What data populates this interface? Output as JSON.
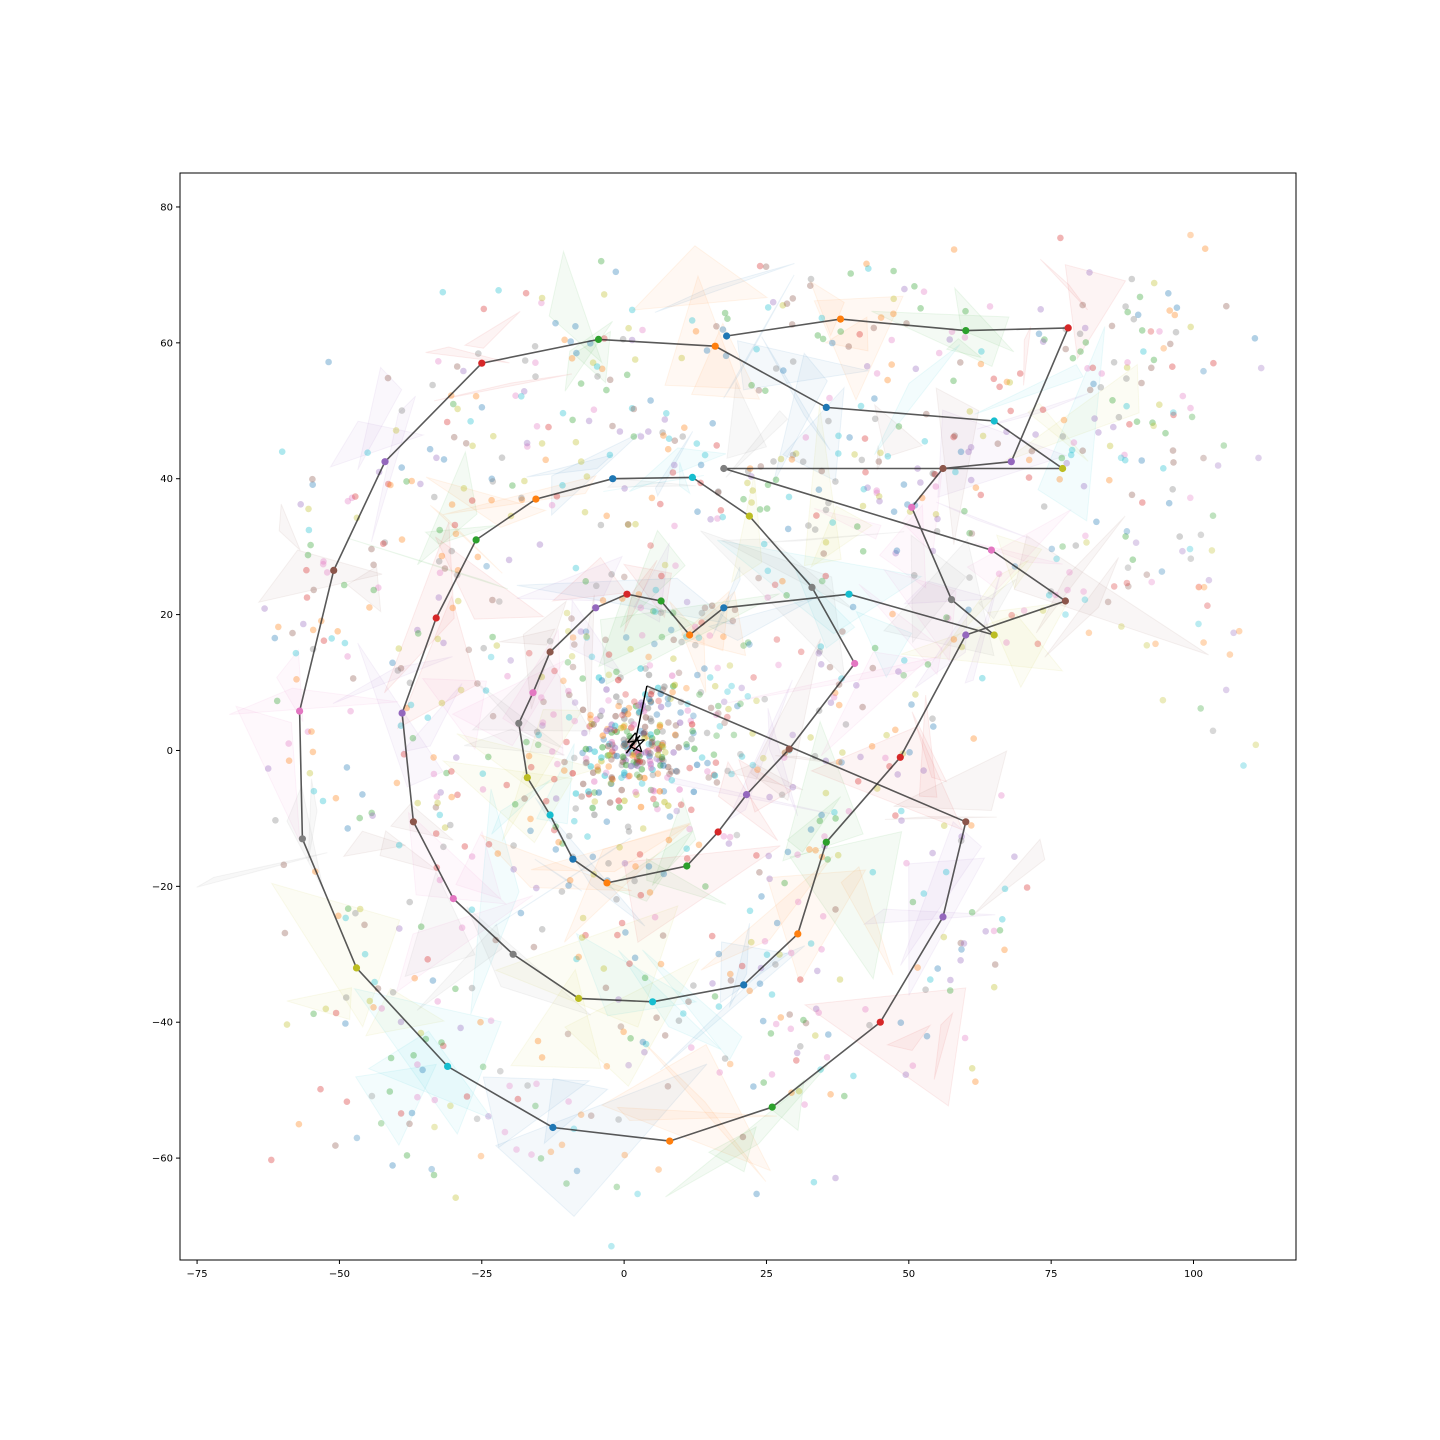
{
  "chart_data": {
    "type": "scatter",
    "title": "",
    "xlabel": "",
    "ylabel": "",
    "xlim": [
      -78,
      118
    ],
    "ylim": [
      -75,
      85
    ],
    "grid": false,
    "x_ticks": [
      -75,
      -50,
      -25,
      0,
      25,
      50,
      75,
      100
    ],
    "x_tick_labels": [
      "−75",
      "−50",
      "−25",
      "0",
      "25",
      "50",
      "75",
      "100"
    ],
    "y_ticks": [
      -60,
      -40,
      -20,
      0,
      20,
      40,
      60,
      80
    ],
    "y_tick_labels": [
      "−60",
      "−40",
      "−20",
      "0",
      "20",
      "40",
      "60",
      "80"
    ],
    "palette": [
      "#1f77b4",
      "#ff7f0e",
      "#2ca02c",
      "#d62728",
      "#9467bd",
      "#8c564b",
      "#e377c2",
      "#7f7f7f",
      "#bcbd22",
      "#17becf"
    ],
    "path_color": "#222222",
    "path": [
      [
        18,
        61
      ],
      [
        38,
        63.5
      ],
      [
        60,
        61.8
      ],
      [
        78,
        62.2
      ],
      [
        68,
        42.5
      ],
      [
        56,
        41.5
      ],
      [
        50.5,
        35.8
      ],
      [
        57.5,
        22.2
      ],
      [
        65,
        17
      ],
      [
        39.5,
        23
      ],
      [
        17.5,
        21
      ],
      [
        11.5,
        17
      ],
      [
        6.5,
        22
      ],
      [
        0.5,
        23
      ],
      [
        -5,
        21
      ],
      [
        -13,
        14.5
      ],
      [
        -16,
        8.5
      ],
      [
        -18.5,
        4
      ],
      [
        -17,
        -4
      ],
      [
        -13,
        -9.5
      ],
      [
        -9,
        -16
      ],
      [
        -3,
        -19.5
      ],
      [
        11,
        -17
      ],
      [
        16.5,
        -12
      ],
      [
        21.5,
        -6.5
      ],
      [
        29,
        0.2
      ],
      [
        40.5,
        12.8
      ],
      [
        33,
        24
      ],
      [
        22,
        34.5
      ],
      [
        12,
        40.2
      ],
      [
        -2,
        40
      ],
      [
        -15.5,
        37
      ],
      [
        -26,
        31
      ],
      [
        -33,
        19.5
      ],
      [
        -39,
        5.5
      ],
      [
        -37,
        -10.5
      ],
      [
        -30,
        -21.8
      ],
      [
        -19.5,
        -30
      ],
      [
        -8,
        -36.5
      ],
      [
        5,
        -37
      ],
      [
        21,
        -34.5
      ],
      [
        30.5,
        -27
      ],
      [
        35.5,
        -13.5
      ],
      [
        48.5,
        -1
      ],
      [
        60,
        17
      ],
      [
        77.5,
        22
      ],
      [
        64.5,
        29.5
      ],
      [
        17.5,
        41.5
      ],
      [
        77,
        41.5
      ],
      [
        65,
        48.5
      ],
      [
        35.5,
        50.5
      ],
      [
        16,
        59.5
      ],
      [
        -4.5,
        60.5
      ],
      [
        -25,
        57
      ],
      [
        -42,
        42.5
      ],
      [
        -51,
        26.5
      ],
      [
        -57,
        5.8
      ],
      [
        -56.5,
        -13
      ],
      [
        -47,
        -32
      ],
      [
        -31,
        -46.5
      ],
      [
        -12.5,
        -55.5
      ],
      [
        8,
        -57.5
      ],
      [
        26,
        -52.5
      ],
      [
        45,
        -40
      ],
      [
        56,
        -24.5
      ],
      [
        60,
        -10.5
      ]
    ],
    "star_center": [
      4,
      9.5
    ],
    "star_segments": [
      [
        2.3,
        1.8,
        0.4,
        -0.4
      ],
      [
        0.4,
        -0.4,
        2.8,
        2.2
      ],
      [
        2.8,
        2.2,
        1.0,
        0.6
      ],
      [
        1.0,
        0.6,
        3.1,
        -0.2
      ],
      [
        3.1,
        -0.2,
        2.0,
        2.6
      ],
      [
        2.0,
        2.6,
        0.6,
        1.2
      ],
      [
        0.6,
        1.2,
        3.6,
        1.6
      ],
      [
        3.6,
        1.6,
        1.6,
        -0.1
      ]
    ],
    "point_groups": [
      {
        "cx": 2,
        "cy": 1,
        "sx": 9,
        "sy": 7,
        "n": 130,
        "alpha": 0.35
      },
      {
        "cx": 2,
        "cy": 1,
        "sx": 4.5,
        "sy": 4.5,
        "n": 170,
        "alpha": 0.45
      },
      {
        "cx": -5,
        "cy": 55,
        "sx": 15,
        "sy": 9,
        "n": 70,
        "alpha": 0.35
      },
      {
        "cx": 45,
        "cy": 62,
        "sx": 18,
        "sy": 7,
        "n": 60,
        "alpha": 0.35
      },
      {
        "cx": 85,
        "cy": 50,
        "sx": 12,
        "sy": 12,
        "n": 70,
        "alpha": 0.35
      },
      {
        "cx": 50,
        "cy": 40,
        "sx": 18,
        "sy": 6,
        "n": 80,
        "alpha": 0.35
      },
      {
        "cx": 15,
        "cy": 38,
        "sx": 15,
        "sy": 8,
        "n": 55,
        "alpha": 0.35
      },
      {
        "cx": 80,
        "cy": 24,
        "sx": 15,
        "sy": 5,
        "n": 45,
        "alpha": 0.3
      },
      {
        "cx": -35,
        "cy": 35,
        "sx": 9,
        "sy": 13,
        "n": 50,
        "alpha": 0.35
      },
      {
        "cx": -52,
        "cy": 5,
        "sx": 7,
        "sy": 20,
        "n": 60,
        "alpha": 0.35
      },
      {
        "cx": -33,
        "cy": -5,
        "sx": 6,
        "sy": 15,
        "n": 45,
        "alpha": 0.35
      },
      {
        "cx": -40,
        "cy": -45,
        "sx": 10,
        "sy": 9,
        "n": 45,
        "alpha": 0.35
      },
      {
        "cx": -10,
        "cy": -55,
        "sx": 15,
        "sy": 6,
        "n": 40,
        "alpha": 0.3
      },
      {
        "cx": 10,
        "cy": -35,
        "sx": 18,
        "sy": 6,
        "n": 55,
        "alpha": 0.35
      },
      {
        "cx": 30,
        "cy": -45,
        "sx": 8,
        "sy": 10,
        "n": 35,
        "alpha": 0.35
      },
      {
        "cx": 32,
        "cy": -12,
        "sx": 6,
        "sy": 10,
        "n": 40,
        "alpha": 0.35
      },
      {
        "cx": 42,
        "cy": 8,
        "sx": 8,
        "sy": 8,
        "n": 40,
        "alpha": 0.35
      },
      {
        "cx": 58,
        "cy": -20,
        "sx": 6,
        "sy": 14,
        "n": 45,
        "alpha": 0.35
      },
      {
        "cx": 8,
        "cy": 18,
        "sx": 11,
        "sy": 6,
        "n": 55,
        "alpha": 0.3
      },
      {
        "cx": -8,
        "cy": -12,
        "sx": 10,
        "sy": 8,
        "n": 55,
        "alpha": 0.35
      },
      {
        "cx": -10,
        "cy": 12,
        "sx": 8,
        "sy": 8,
        "n": 40,
        "alpha": 0.3
      },
      {
        "cx": 20,
        "cy": 5,
        "sx": 7,
        "sy": 8,
        "n": 35,
        "alpha": 0.3
      },
      {
        "cx": 100,
        "cy": 35,
        "sx": 8,
        "sy": 20,
        "n": 30,
        "alpha": 0.3
      },
      {
        "cx": 92,
        "cy": 62,
        "sx": 8,
        "sy": 4,
        "n": 20,
        "alpha": 0.35
      },
      {
        "cx": -20,
        "cy": 45,
        "sx": 10,
        "sy": 8,
        "n": 40,
        "alpha": 0.35
      }
    ]
  }
}
